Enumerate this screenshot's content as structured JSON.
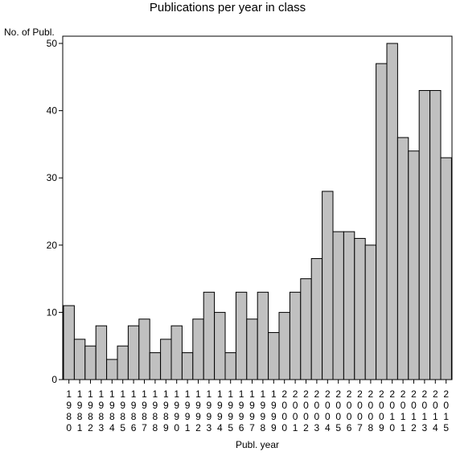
{
  "chart_data": {
    "type": "bar",
    "title": "Publications per year in class",
    "ylabel": "No. of Publ.",
    "xlabel": "Publ. year",
    "ylim": [
      0,
      50
    ],
    "yticks": [
      0,
      10,
      20,
      30,
      40,
      50
    ],
    "categories": [
      "1980",
      "1981",
      "1982",
      "1983",
      "1984",
      "1985",
      "1986",
      "1987",
      "1988",
      "1989",
      "1990",
      "1991",
      "1992",
      "1993",
      "1994",
      "1995",
      "1996",
      "1997",
      "1998",
      "1999",
      "2000",
      "2001",
      "2002",
      "2003",
      "2004",
      "2005",
      "2006",
      "2007",
      "2008",
      "2009",
      "2010",
      "2011",
      "2012",
      "2013",
      "2014",
      "2015"
    ],
    "values": [
      11,
      6,
      5,
      8,
      3,
      5,
      8,
      9,
      4,
      6,
      8,
      4,
      9,
      13,
      10,
      4,
      13,
      9,
      13,
      7,
      10,
      13,
      15,
      18,
      28,
      22,
      22,
      21,
      20,
      47,
      50,
      36,
      34,
      43,
      43,
      33
    ],
    "grid": false,
    "bar_color": "#c0c0c0"
  }
}
